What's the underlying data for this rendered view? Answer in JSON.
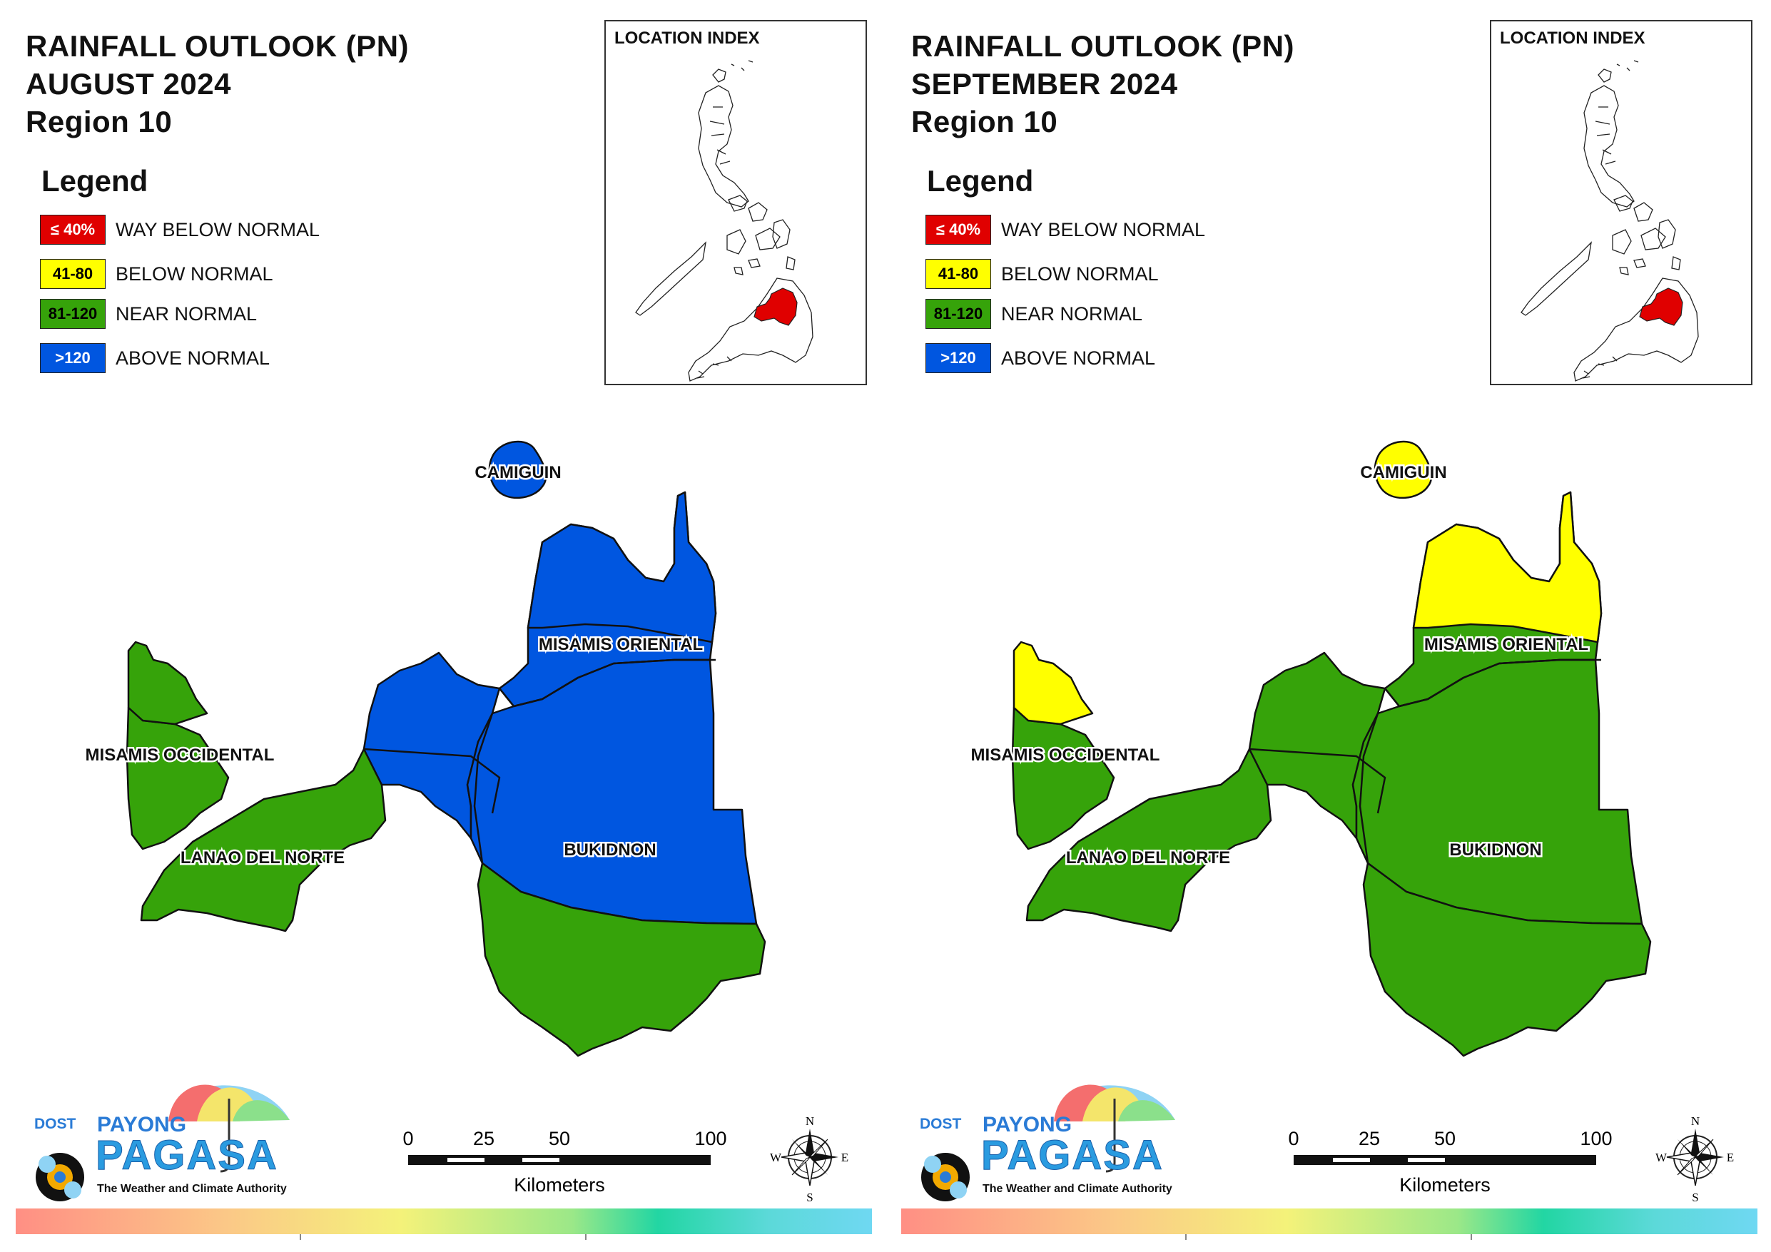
{
  "panels": [
    {
      "title_line1": "RAINFALL OUTLOOK (PN)",
      "title_line2": "AUGUST 2024",
      "title_line3": "Region 10",
      "region_colors": {
        "misamis_occidental": "#36a30a",
        "lanao_del_norte_west": "#36a30a",
        "lanao_del_norte_east": "#0056e0",
        "camiguin": "#0056e0",
        "misamis_oriental": "#0056e0",
        "bukidnon_north": "#0056e0",
        "bukidnon_south": "#36a30a",
        "misamis_occidental_north": "#36a30a",
        "misamis_oriental_north": "#0056e0"
      }
    },
    {
      "title_line1": "RAINFALL OUTLOOK (PN)",
      "title_line2": "SEPTEMBER 2024",
      "title_line3": "Region 10",
      "region_colors": {
        "misamis_occidental": "#36a30a",
        "lanao_del_norte_west": "#36a30a",
        "lanao_del_norte_east": "#36a30a",
        "camiguin": "#ffff00",
        "misamis_oriental": "#36a30a",
        "bukidnon_north": "#36a30a",
        "bukidnon_south": "#36a30a",
        "misamis_occidental_north": "#ffff00",
        "misamis_oriental_north": "#ffff00"
      }
    }
  ],
  "legend": {
    "title": "Legend",
    "items": [
      {
        "swatch": "≤ 40%",
        "label": "WAY BELOW NORMAL",
        "color": "#e00000",
        "text_color": "#ffffff"
      },
      {
        "swatch": "41-80",
        "label": "BELOW NORMAL",
        "color": "#ffff00",
        "text_color": "#000000"
      },
      {
        "swatch": "81-120",
        "label": "NEAR NORMAL",
        "color": "#36a30a",
        "text_color": "#000000"
      },
      {
        "swatch": ">120",
        "label": "ABOVE NORMAL",
        "color": "#0056e0",
        "text_color": "#ffffff"
      }
    ]
  },
  "location_index": {
    "title": "LOCATION INDEX",
    "highlight_color": "#e00000"
  },
  "map_labels": {
    "camiguin": "CAMIGUIN",
    "misamis_oriental": "MISAMIS ORIENTAL",
    "misamis_occidental": "MISAMIS OCCIDENTAL",
    "lanao_del_norte": "LANAO DEL NORTE",
    "bukidnon": "BUKIDNON"
  },
  "scale_bar": {
    "ticks": [
      "0",
      "25",
      "50",
      "100"
    ],
    "unit": "Kilometers"
  },
  "compass": {
    "n": "N",
    "s": "S",
    "e": "E",
    "w": "W"
  },
  "logo": {
    "agency": "DOST",
    "brand_top": "PAYONG",
    "brand_main": "PAGASA",
    "tagline": "The Weather and Climate Authority"
  }
}
